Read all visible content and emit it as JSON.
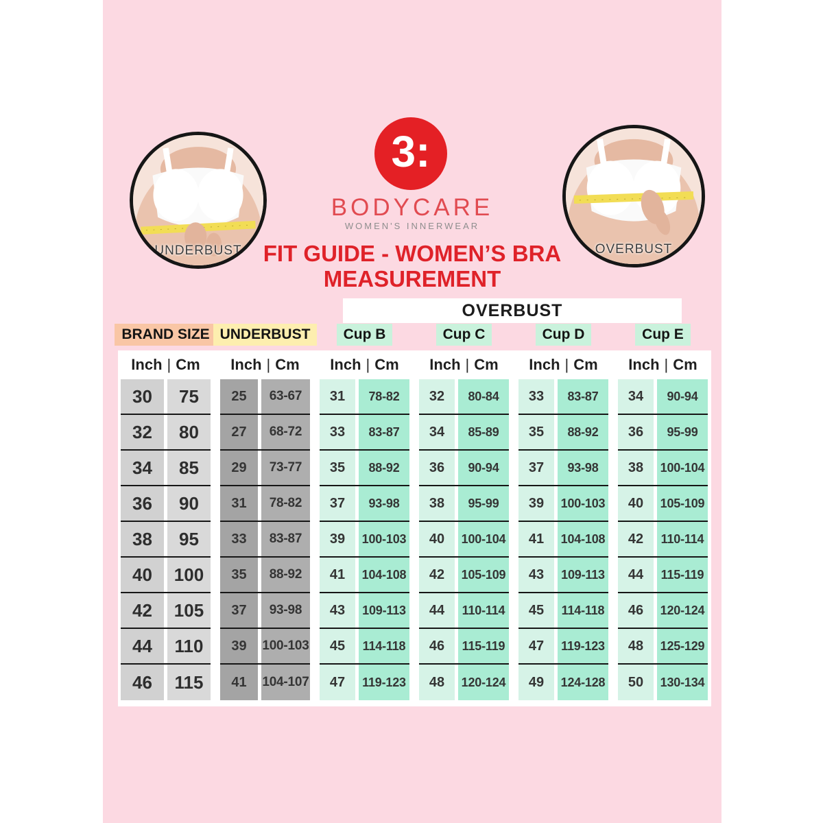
{
  "brand": {
    "name": "BODYCARE",
    "tagline": "WOMEN'S INNERWEAR",
    "logo_glyph": "3:"
  },
  "title": {
    "line1": "FIT GUIDE - WOMEN’S BRA",
    "line2": "MEASUREMENT"
  },
  "photos": {
    "left_label": "UNDERBUST",
    "right_label": "OVERBUST"
  },
  "colors": {
    "background_pink": "#fcd9e2",
    "logo_red": "#e42025",
    "brand_text_red": "#e14b51",
    "title_red": "#df2229",
    "brand_size_header_bg": "#f9c6a5",
    "underbust_header_bg": "#fdeeaf",
    "cup_header_bg": "#c9f2dc",
    "tape_yellow": "#f2dd55"
  },
  "table": {
    "overbust_header": "OVERBUST",
    "unit_header": {
      "inch": "Inch",
      "separator": "|",
      "cm": "Cm"
    },
    "groups": [
      {
        "label": "BRAND SIZE",
        "type": "brand",
        "label_bg": "#f9c6a5",
        "inch_bg": "#d1d1d1",
        "cm_bg": "#d9d9d9"
      },
      {
        "label": "UNDERBUST",
        "type": "under",
        "label_bg": "#fdeeaf",
        "inch_bg": "#a4a4a4",
        "cm_bg": "#aeaeae"
      },
      {
        "label": "Cup B",
        "type": "cup",
        "label_bg": "#c9f2dc",
        "inch_bg": "#d6f3e7",
        "cm_bg": "#a9ecd3"
      },
      {
        "label": "Cup C",
        "type": "cup",
        "label_bg": "#c9f2dc",
        "inch_bg": "#d6f3e7",
        "cm_bg": "#a9ecd3"
      },
      {
        "label": "Cup D",
        "type": "cup",
        "label_bg": "#c9f2dc",
        "inch_bg": "#d6f3e7",
        "cm_bg": "#a9ecd3"
      },
      {
        "label": "Cup E",
        "type": "cup",
        "label_bg": "#c9f2dc",
        "inch_bg": "#d6f3e7",
        "cm_bg": "#a9ecd3"
      }
    ]
  },
  "chart_data": {
    "type": "table",
    "title": "FIT GUIDE - WOMEN'S BRA MEASUREMENT",
    "overbust_span_groups": [
      "Cup B",
      "Cup C",
      "Cup D",
      "Cup E"
    ],
    "column_groups": [
      {
        "group": "BRAND SIZE",
        "columns": [
          "Inch",
          "Cm"
        ]
      },
      {
        "group": "UNDERBUST",
        "columns": [
          "Inch",
          "Cm"
        ]
      },
      {
        "group": "Cup B",
        "columns": [
          "Inch",
          "Cm"
        ]
      },
      {
        "group": "Cup C",
        "columns": [
          "Inch",
          "Cm"
        ]
      },
      {
        "group": "Cup D",
        "columns": [
          "Inch",
          "Cm"
        ]
      },
      {
        "group": "Cup E",
        "columns": [
          "Inch",
          "Cm"
        ]
      }
    ],
    "rows": [
      [
        "30",
        "75",
        "25",
        "63-67",
        "31",
        "78-82",
        "32",
        "80-84",
        "33",
        "83-87",
        "34",
        "90-94"
      ],
      [
        "32",
        "80",
        "27",
        "68-72",
        "33",
        "83-87",
        "34",
        "85-89",
        "35",
        "88-92",
        "36",
        "95-99"
      ],
      [
        "34",
        "85",
        "29",
        "73-77",
        "35",
        "88-92",
        "36",
        "90-94",
        "37",
        "93-98",
        "38",
        "100-104"
      ],
      [
        "36",
        "90",
        "31",
        "78-82",
        "37",
        "93-98",
        "38",
        "95-99",
        "39",
        "100-103",
        "40",
        "105-109"
      ],
      [
        "38",
        "95",
        "33",
        "83-87",
        "39",
        "100-103",
        "40",
        "100-104",
        "41",
        "104-108",
        "42",
        "110-114"
      ],
      [
        "40",
        "100",
        "35",
        "88-92",
        "41",
        "104-108",
        "42",
        "105-109",
        "43",
        "109-113",
        "44",
        "115-119"
      ],
      [
        "42",
        "105",
        "37",
        "93-98",
        "43",
        "109-113",
        "44",
        "110-114",
        "45",
        "114-118",
        "46",
        "120-124"
      ],
      [
        "44",
        "110",
        "39",
        "100-103",
        "45",
        "114-118",
        "46",
        "115-119",
        "47",
        "119-123",
        "48",
        "125-129"
      ],
      [
        "46",
        "115",
        "41",
        "104-107",
        "47",
        "119-123",
        "48",
        "120-124",
        "49",
        "124-128",
        "50",
        "130-134"
      ]
    ]
  }
}
